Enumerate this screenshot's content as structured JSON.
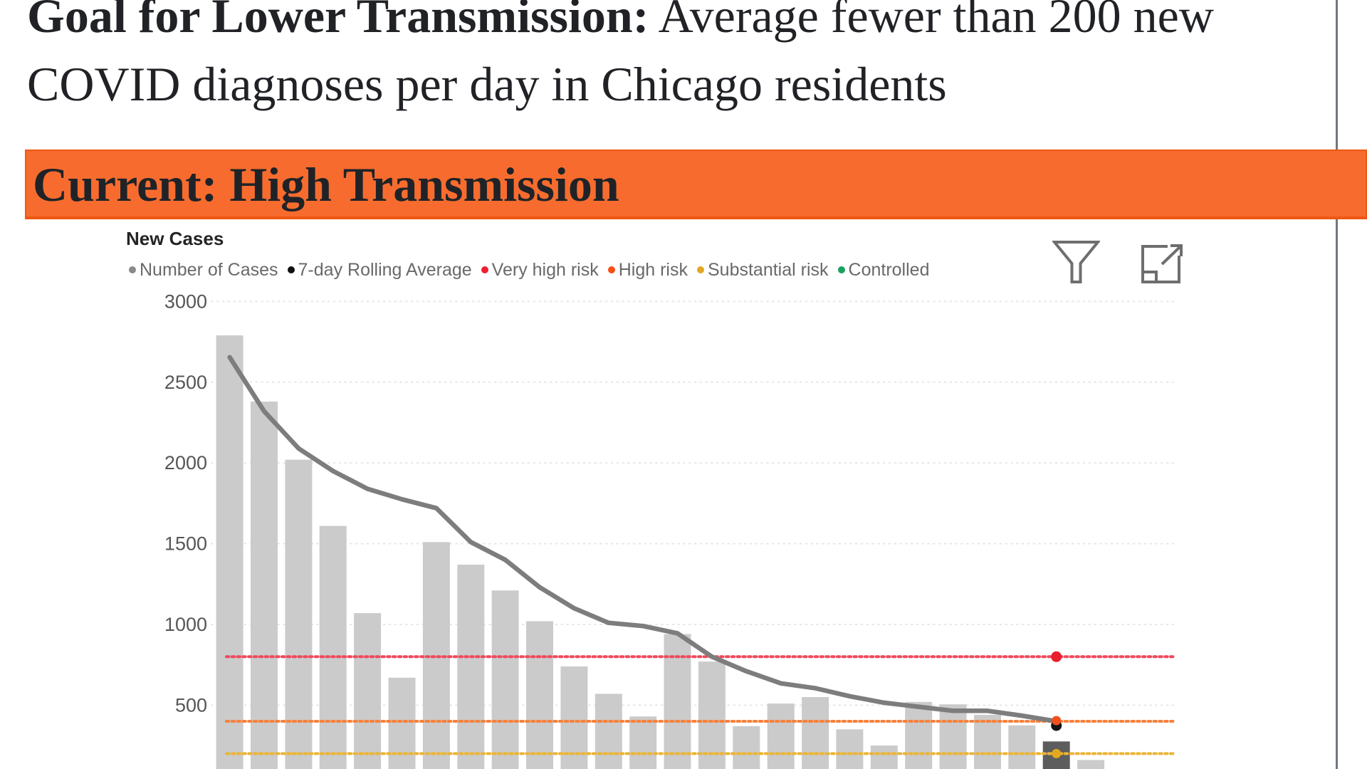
{
  "goal": {
    "bold": "Goal for Lower Transmission:",
    "line1_rest": " Average fewer than 200 new",
    "line2": "COVID diagnoses per day in Chicago residents"
  },
  "banner": {
    "text": "Current: High Transmission",
    "bg_color": "#F76C2E"
  },
  "chart": {
    "title": "New Cases",
    "legend": [
      {
        "label": "Number of Cases",
        "color": "#8A8A8A"
      },
      {
        "label": "7-day Rolling Average",
        "color": "#101010"
      },
      {
        "label": "Very high risk",
        "color": "#EE1F33"
      },
      {
        "label": "High risk",
        "color": "#F94E15"
      },
      {
        "label": "Substantial risk",
        "color": "#E0A91F"
      },
      {
        "label": "Controlled",
        "color": "#18A05C"
      }
    ],
    "icons": {
      "filter": "funnel-icon",
      "expand": "focus-mode-icon"
    }
  },
  "chart_data": {
    "type": "bar",
    "title": "New Cases",
    "series": [
      {
        "name": "Number of Cases",
        "type": "bar",
        "color": "#CBCBCB",
        "values": [
          2790,
          2380,
          2020,
          1610,
          1070,
          670,
          1510,
          1370,
          1210,
          1020,
          740,
          570,
          430,
          940,
          770,
          370,
          510,
          550,
          350,
          250,
          520,
          505,
          440,
          375,
          275,
          160
        ]
      },
      {
        "name": "7-day Rolling Average",
        "type": "line",
        "color": "#7D7D7D",
        "values": [
          2655,
          2320,
          2090,
          1950,
          1840,
          1775,
          1720,
          1510,
          1400,
          1230,
          1100,
          1010,
          990,
          945,
          800,
          710,
          635,
          605,
          555,
          515,
          490,
          465,
          465,
          435,
          400
        ]
      }
    ],
    "highlighted_bar_index": 24,
    "highlighted_bar_color": "#5D5D5D",
    "reference_lines": [
      {
        "name": "Very high risk",
        "value": 800,
        "color": "#F0495C"
      },
      {
        "name": "High risk",
        "value": 400,
        "color": "#F5823E"
      },
      {
        "name": "Substantial risk",
        "value": 200,
        "color": "#EAB539"
      }
    ],
    "end_markers": [
      {
        "series": "Very high risk",
        "value": 800,
        "color": "#E81E2E"
      },
      {
        "series": "7-day Rolling Average",
        "value": 400,
        "color": "#151515"
      },
      {
        "series": "High risk",
        "value": 400,
        "color": "#F0501E"
      },
      {
        "series": "Substantial risk",
        "value": 200,
        "color": "#E2A91E"
      }
    ],
    "ylim": [
      0,
      3000
    ],
    "y_ticks": [
      500,
      1000,
      1500,
      2000,
      2500,
      3000
    ],
    "x_tick_labels_visible": false,
    "grid": "dotted-horizontal",
    "legend_position": "top"
  }
}
